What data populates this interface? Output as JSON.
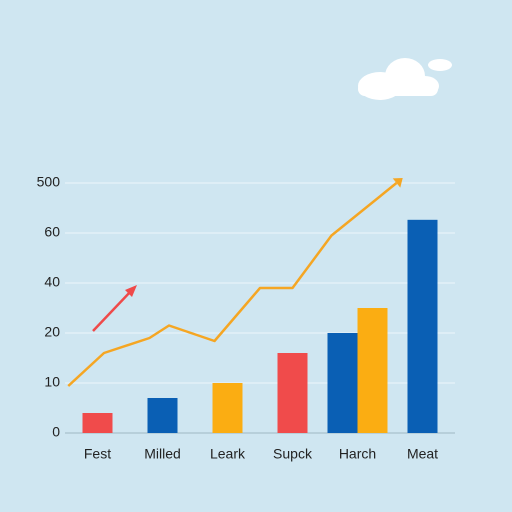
{
  "chart_data": {
    "type": "bar",
    "categories": [
      "Fest",
      "Milled",
      "Leark",
      "Supck",
      "Harch",
      "Meat"
    ],
    "series": [
      {
        "color": "#f04b4b",
        "values": [
          4,
          null,
          null,
          16,
          null,
          null
        ]
      },
      {
        "color": "#0a5fb4",
        "values": [
          null,
          7,
          null,
          null,
          20,
          176
        ]
      },
      {
        "color": "#fbad12",
        "values": [
          null,
          null,
          10,
          null,
          30,
          null
        ]
      }
    ],
    "line": {
      "color": "#f5a623",
      "x": [
        0.05,
        0.6,
        1.3,
        1.6,
        2.3,
        3.0,
        3.5,
        4.1,
        5.1
      ],
      "values": [
        9.4,
        16,
        19,
        23,
        18.4,
        38,
        38,
        59,
        500
      ]
    },
    "xlim": [
      0,
      6
    ],
    "ylim": [
      0,
      500
    ],
    "yticks": [
      0,
      10,
      20,
      40,
      60,
      500
    ],
    "grid": true
  }
}
